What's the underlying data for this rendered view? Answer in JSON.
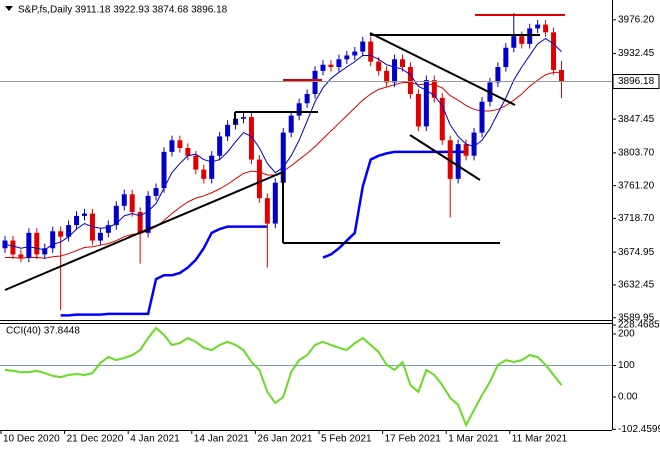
{
  "chart_data": [
    {
      "type": "candlestick",
      "title": "S&P,fs,Daily  3911.18 3922.93 3874.68 3896.18",
      "categories": [
        "10 Dec 2020",
        null,
        null,
        null,
        null,
        null,
        null,
        null,
        "21 Dec 2020",
        null,
        null,
        null,
        null,
        null,
        null,
        null,
        "4 Jan 2021",
        null,
        null,
        null,
        null,
        null,
        null,
        null,
        "14 Jan 2021",
        null,
        null,
        null,
        null,
        null,
        null,
        null,
        "26 Jan 2021",
        null,
        null,
        null,
        null,
        null,
        null,
        null,
        "5 Feb 2021",
        null,
        null,
        null,
        null,
        null,
        null,
        null,
        "17 Feb 2021",
        null,
        null,
        null,
        null,
        null,
        null,
        null,
        "1 Mar 2021",
        null,
        null,
        null,
        null,
        null,
        null,
        null,
        "11 Mar 2021",
        null,
        null,
        null,
        null,
        null,
        null
      ],
      "open": [
        3680,
        3690,
        3672,
        3668,
        3700,
        3672,
        3680,
        3702,
        3695,
        3710,
        3722,
        3725,
        3690,
        3700,
        3710,
        3735,
        3750,
        3727,
        3700,
        3748,
        3758,
        3805,
        3820,
        3810,
        3800,
        3782,
        3770,
        3800,
        3825,
        3840,
        3848,
        3850,
        3795,
        3745,
        3712,
        3765,
        3830,
        3852,
        3868,
        3880,
        3910,
        3918,
        3915,
        3925,
        3930,
        3935,
        3948,
        3922,
        3910,
        3895,
        3925,
        3915,
        3880,
        3838,
        3898,
        3875,
        3820,
        3770,
        3815,
        3800,
        3830,
        3870,
        3895,
        3915,
        3940,
        3955,
        3945,
        3965,
        3970,
        3960,
        3911.18
      ],
      "high": [
        3696,
        3696,
        3678,
        3706,
        3706,
        3686,
        3708,
        3708,
        3716,
        3728,
        3731,
        3731,
        3706,
        3716,
        3741,
        3756,
        3756,
        3733,
        3754,
        3764,
        3811,
        3826,
        3826,
        3816,
        3806,
        3788,
        3806,
        3831,
        3846,
        3854,
        3856,
        3856,
        3801,
        3751,
        3771,
        3836,
        3858,
        3874,
        3886,
        3916,
        3924,
        3924,
        3931,
        3936,
        3941,
        3954,
        3954,
        3928,
        3916,
        3931,
        3931,
        3921,
        3886,
        3904,
        3904,
        3881,
        3826,
        3821,
        3821,
        3836,
        3876,
        3901,
        3921,
        3946,
        3985,
        3961,
        3971,
        3976,
        3976,
        3966,
        3922.93
      ],
      "low": [
        3674,
        3666,
        3662,
        3662,
        3666,
        3666,
        3674,
        3600,
        3689,
        3704,
        3716,
        3684,
        3684,
        3694,
        3704,
        3729,
        3721,
        3660,
        3694,
        3742,
        3752,
        3799,
        3804,
        3794,
        3776,
        3764,
        3764,
        3794,
        3819,
        3834,
        3842,
        3789,
        3739,
        3655,
        3706,
        3759,
        3824,
        3846,
        3862,
        3874,
        3904,
        3909,
        3909,
        3919,
        3924,
        3929,
        3916,
        3904,
        3889,
        3889,
        3909,
        3874,
        3832,
        3832,
        3869,
        3814,
        3720,
        3764,
        3794,
        3794,
        3824,
        3864,
        3889,
        3909,
        3934,
        3939,
        3939,
        3959,
        3954,
        3905,
        3874.68
      ],
      "close": [
        3690,
        3672,
        3668,
        3700,
        3672,
        3680,
        3702,
        3695,
        3710,
        3722,
        3725,
        3690,
        3700,
        3710,
        3735,
        3750,
        3727,
        3700,
        3748,
        3758,
        3805,
        3820,
        3810,
        3800,
        3782,
        3770,
        3800,
        3825,
        3840,
        3848,
        3850,
        3795,
        3745,
        3712,
        3765,
        3830,
        3852,
        3868,
        3880,
        3910,
        3918,
        3915,
        3925,
        3930,
        3935,
        3948,
        3922,
        3910,
        3895,
        3925,
        3915,
        3880,
        3838,
        3898,
        3875,
        3820,
        3770,
        3815,
        3800,
        3830,
        3870,
        3895,
        3915,
        3940,
        3955,
        3945,
        3965,
        3970,
        3960,
        3911.18,
        3896.18
      ],
      "up_color": "#0000cc",
      "down_color": "#e00000",
      "last_price": 3896.18,
      "overlays": [
        {
          "color": "#0000cc",
          "width": 1,
          "values": [
            3685,
            3683,
            3680,
            3682,
            3680,
            3678,
            3685,
            3688,
            3695,
            3705,
            3712,
            3708,
            3706,
            3707,
            3712,
            3722,
            3725,
            3722,
            3728,
            3738,
            3758,
            3778,
            3790,
            3800,
            3802,
            3795,
            3792,
            3795,
            3805,
            3818,
            3830,
            3825,
            3810,
            3790,
            3778,
            3785,
            3800,
            3820,
            3845,
            3870,
            3888,
            3900,
            3908,
            3915,
            3922,
            3930,
            3930,
            3925,
            3918,
            3915,
            3912,
            3905,
            3890,
            3885,
            3878,
            3865,
            3840,
            3825,
            3815,
            3812,
            3820,
            3835,
            3855,
            3875,
            3898,
            3915,
            3930,
            3945,
            3952,
            3945,
            3935
          ]
        },
        {
          "color": "#e00000",
          "width": 1,
          "values": [
            3668,
            3668,
            3667,
            3668,
            3668,
            3667,
            3669,
            3670,
            3673,
            3677,
            3681,
            3682,
            3684,
            3686,
            3690,
            3695,
            3698,
            3699,
            3703,
            3708,
            3716,
            3725,
            3733,
            3740,
            3745,
            3748,
            3752,
            3757,
            3763,
            3770,
            3777,
            3780,
            3779,
            3775,
            3775,
            3780,
            3787,
            3795,
            3803,
            3812,
            3822,
            3832,
            3842,
            3852,
            3862,
            3872,
            3880,
            3886,
            3889,
            3892,
            3895,
            3895,
            3892,
            3893,
            3892,
            3888,
            3878,
            3872,
            3865,
            3860,
            3858,
            3858,
            3860,
            3865,
            3872,
            3880,
            3890,
            3898,
            3905,
            3908,
            3908
          ]
        },
        {
          "color": "#0000ff",
          "width": 2.5,
          "values": [
            null,
            null,
            null,
            null,
            null,
            null,
            null,
            3593,
            3593,
            3594,
            3594,
            3594,
            3594,
            3595,
            3595,
            3595,
            3595,
            3595,
            3595,
            3640,
            3645,
            3645,
            3648,
            3655,
            3665,
            3680,
            3700,
            3705,
            3708,
            3708,
            3708,
            3708,
            3708,
            3708,
            null,
            null,
            null,
            null,
            null,
            null,
            3668,
            3672,
            3680,
            3690,
            3700,
            3760,
            3795,
            3800,
            3803,
            3805,
            3805,
            3805,
            3805,
            3805,
            3805,
            3805,
            3805,
            3805,
            3805,
            null,
            null,
            null,
            null,
            null,
            null,
            null,
            null,
            null,
            null,
            null,
            null
          ]
        }
      ],
      "ylim": [
        3587,
        3998
      ],
      "yticks": [
        3589.95,
        3632.45,
        3674.95,
        {
          "value": 3718.7,
          "label": "3718.70"
        },
        {
          "value": 3761.2,
          "label": "3761.20"
        },
        {
          "value": 3803.7,
          "label": "3803.70"
        },
        3847.45,
        3889.95,
        3932.45,
        {
          "value": 3976.2,
          "label": "3976.20"
        }
      ]
    },
    {
      "type": "line",
      "title": "CCI(40) 37.8448",
      "color": "#66dd22",
      "values": [
        86,
        83,
        79,
        79,
        83,
        76,
        67,
        63,
        70,
        73,
        70,
        76,
        108,
        127,
        117,
        124,
        133,
        149,
        187,
        219,
        197,
        165,
        171,
        187,
        175,
        156,
        149,
        165,
        175,
        165,
        149,
        111,
        86,
        16,
        -19,
        0,
        79,
        117,
        133,
        165,
        175,
        165,
        156,
        149,
        171,
        187,
        165,
        143,
        102,
        86,
        111,
        38,
        16,
        86,
        70,
        38,
        -3,
        -25,
        -89,
        -41,
        6,
        48,
        102,
        117,
        111,
        117,
        133,
        127,
        102,
        70,
        37.8448
      ],
      "levels": [
        100
      ],
      "ylim": [
        -102.4599,
        228.4685
      ],
      "yticks": [
        -102.4599,
        {
          "value": 0,
          "label": "0.00"
        },
        100,
        200,
        228.4685
      ]
    }
  ]
}
